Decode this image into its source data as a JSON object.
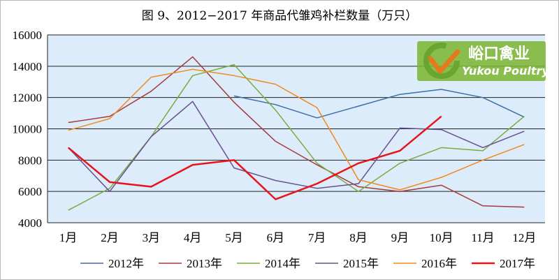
{
  "chart_data": {
    "type": "line",
    "title": "图 9、2012−2017 年商品代雏鸡补栏数量（万只）",
    "categories": [
      "1月",
      "2月",
      "3月",
      "4月",
      "5月",
      "6月",
      "7月",
      "8月",
      "9月",
      "10月",
      "11月",
      "12月"
    ],
    "ylim": [
      4000,
      16000
    ],
    "yticks": [
      4000,
      6000,
      8000,
      10000,
      12000,
      14000,
      16000
    ],
    "ytick_labels": [
      "4000",
      "6000",
      "8000",
      "10000",
      "12000",
      "14000",
      "16000"
    ],
    "grid": true,
    "legend_position": "bottom",
    "plot_bg": "#dcecfa",
    "series": [
      {
        "name": "2012年",
        "color": "#3d6fa8",
        "width": 1.5,
        "values": [
          null,
          null,
          null,
          null,
          12100,
          11550,
          10700,
          11450,
          12200,
          12520,
          12000,
          10750
        ]
      },
      {
        "name": "2013年",
        "color": "#a33c3a",
        "width": 1.5,
        "values": [
          10400,
          10800,
          12400,
          14600,
          11700,
          9200,
          7700,
          6300,
          6000,
          6400,
          5080,
          5000
        ]
      },
      {
        "name": "2014年",
        "color": "#7cab3d",
        "width": 1.5,
        "values": [
          4800,
          6200,
          9500,
          13400,
          14100,
          11200,
          7800,
          6000,
          7800,
          8800,
          8600,
          10800
        ]
      },
      {
        "name": "2015年",
        "color": "#6a4f92",
        "width": 1.5,
        "values": [
          8800,
          6000,
          9500,
          11750,
          7500,
          6700,
          6200,
          6500,
          10050,
          9950,
          8800,
          9850
        ]
      },
      {
        "name": "2016年",
        "color": "#f28a1d",
        "width": 1.5,
        "values": [
          9900,
          10650,
          13300,
          13800,
          13400,
          12850,
          11350,
          6750,
          6100,
          6900,
          8000,
          9000
        ]
      },
      {
        "name": "2017年",
        "color": "#e8141b",
        "width": 2.5,
        "values": [
          8800,
          6600,
          6300,
          7700,
          8000,
          5500,
          6500,
          7800,
          8600,
          10800,
          null,
          null
        ]
      }
    ]
  },
  "watermark": {
    "name_cn": "峪口禽业",
    "name_en": "Yukou Poultry",
    "badge_color": "#7ab52f",
    "logo_colors": [
      "#6aa530",
      "#e47a1b"
    ]
  }
}
